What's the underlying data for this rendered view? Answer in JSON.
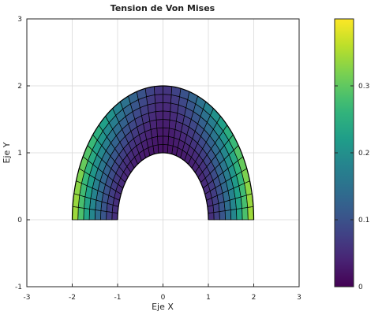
{
  "chart_data": {
    "type": "heatmap",
    "title": "Tension de Von Mises",
    "xlabel": "Eje X",
    "ylabel": "Eje Y",
    "xlim": [
      -3,
      3
    ],
    "ylim": [
      -1,
      3
    ],
    "xticks": [
      -3,
      -2,
      -1,
      0,
      1,
      2,
      3
    ],
    "yticks": [
      -1,
      0,
      1,
      2,
      3
    ],
    "grid": true,
    "mesh": {
      "shape": "half-ellipse ring",
      "inner_radius_x": 1.0,
      "inner_radius_y": 1.0,
      "outer_radius_x": 2.0,
      "outer_radius_y": 2.0,
      "angle_start_deg": 0,
      "angle_end_deg": 180,
      "radial_divisions": 8,
      "angular_divisions": 32
    },
    "stress_model": {
      "description": "von Mises stress values sampled per cell",
      "value_at_inner_crown": 0.02,
      "value_at_outer_crown": 0.06,
      "value_at_inner_base": 0.05,
      "value_at_outer_base": 0.37
    },
    "colorbar": {
      "colormap": "viridis",
      "range": [
        0,
        0.4
      ],
      "ticks": [
        0,
        0.1,
        0.2,
        0.3
      ],
      "tick_labels": [
        "0",
        "0.1",
        "0.2",
        "0.3"
      ]
    }
  }
}
